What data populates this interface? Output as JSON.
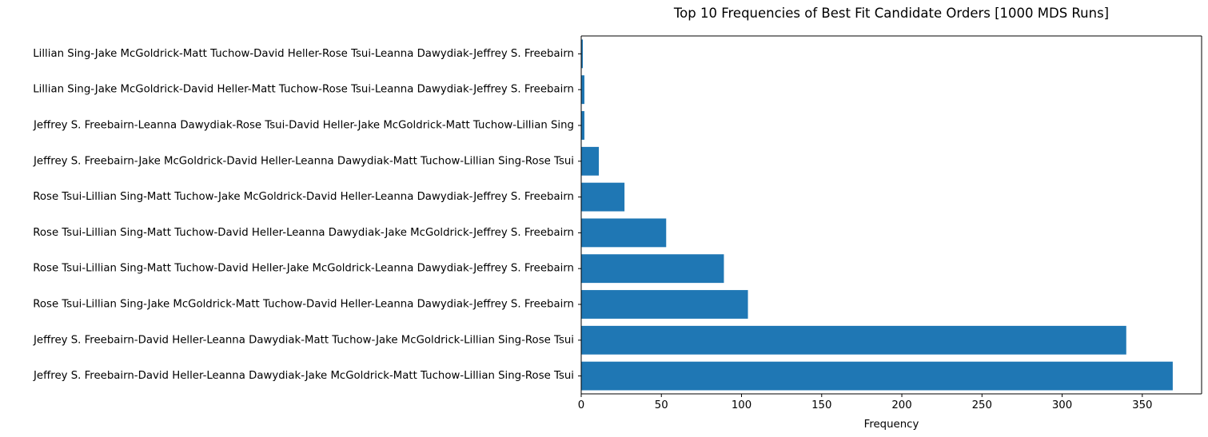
{
  "chart_data": {
    "type": "bar",
    "orientation": "horizontal",
    "title": "Top 10 Frequencies of Best Fit Candidate Orders [1000 MDS Runs]",
    "xlabel": "Frequency",
    "ylabel": "",
    "xlim": [
      0,
      387
    ],
    "x_ticks": [
      0,
      50,
      100,
      150,
      200,
      250,
      300,
      350
    ],
    "grid": false,
    "legend": "none",
    "bar_color": "#1f77b4",
    "categories": [
      "Jeffrey S. Freebairn-David Heller-Leanna Dawydiak-Jake McGoldrick-Matt Tuchow-Lillian Sing-Rose Tsui",
      "Jeffrey S. Freebairn-David Heller-Leanna Dawydiak-Matt Tuchow-Jake McGoldrick-Lillian Sing-Rose Tsui",
      "Rose Tsui-Lillian Sing-Jake McGoldrick-Matt Tuchow-David Heller-Leanna Dawydiak-Jeffrey S. Freebairn",
      "Rose Tsui-Lillian Sing-Matt Tuchow-David Heller-Jake McGoldrick-Leanna Dawydiak-Jeffrey S. Freebairn",
      "Rose Tsui-Lillian Sing-Matt Tuchow-David Heller-Leanna Dawydiak-Jake McGoldrick-Jeffrey S. Freebairn",
      "Rose Tsui-Lillian Sing-Matt Tuchow-Jake McGoldrick-David Heller-Leanna Dawydiak-Jeffrey S. Freebairn",
      "Jeffrey S. Freebairn-Jake McGoldrick-David Heller-Leanna Dawydiak-Matt Tuchow-Lillian Sing-Rose Tsui",
      "Jeffrey S. Freebairn-Leanna Dawydiak-Rose Tsui-David Heller-Jake McGoldrick-Matt Tuchow-Lillian Sing",
      "Lillian Sing-Jake McGoldrick-David Heller-Matt Tuchow-Rose Tsui-Leanna Dawydiak-Jeffrey S. Freebairn",
      "Lillian Sing-Jake McGoldrick-Matt Tuchow-David Heller-Rose Tsui-Leanna Dawydiak-Jeffrey S. Freebairn"
    ],
    "values": [
      369,
      340,
      104,
      89,
      53,
      27,
      11,
      2,
      2,
      1
    ]
  }
}
